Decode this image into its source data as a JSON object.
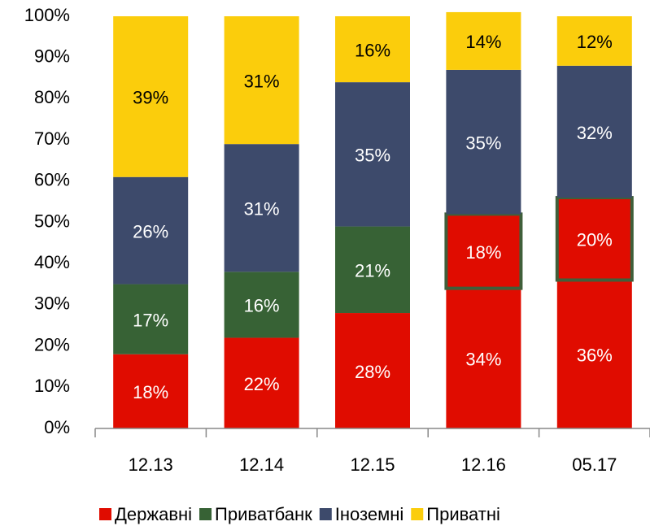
{
  "chart_data": {
    "type": "stacked_bar",
    "categories": [
      "12.13",
      "12.14",
      "12.15",
      "12.16",
      "05.17"
    ],
    "series": [
      {
        "name": "Державні",
        "color": "#e00c00",
        "values": [
          18,
          22,
          28,
          34,
          36
        ],
        "value_labels": [
          "18%",
          "22%",
          "28%",
          "34%",
          "36%"
        ]
      },
      {
        "name": "Приватбанк",
        "color": "#376235",
        "values": [
          17,
          16,
          21,
          18,
          20
        ],
        "value_labels": [
          "17%",
          "16%",
          "21%",
          "18%",
          "20%"
        ],
        "colors": [
          "#376235",
          "#376235",
          "#376235",
          "#e00c00",
          "#e00c00"
        ],
        "edgecolors": [
          null,
          null,
          null,
          "#3f5f3a",
          "#3f5f3a"
        ]
      },
      {
        "name": "Іноземні",
        "color": "#3d4a6b",
        "values": [
          26,
          31,
          35,
          35,
          32
        ],
        "value_labels": [
          "26%",
          "31%",
          "35%",
          "35%",
          "32%"
        ]
      },
      {
        "name": "Приватні",
        "color": "#fbcd0c",
        "values": [
          39,
          31,
          16,
          14,
          12
        ],
        "value_labels": [
          "39%",
          "31%",
          "16%",
          "14%",
          "12%"
        ]
      }
    ],
    "ylim": [
      0,
      100
    ],
    "yticks": [
      {
        "value": 0,
        "label": "0%"
      },
      {
        "value": 10,
        "label": "10%"
      },
      {
        "value": 20,
        "label": "20%"
      },
      {
        "value": 30,
        "label": "30%"
      },
      {
        "value": 40,
        "label": "40%"
      },
      {
        "value": 50,
        "label": "50%"
      },
      {
        "value": 60,
        "label": "60%"
      },
      {
        "value": 70,
        "label": "70%"
      },
      {
        "value": 80,
        "label": "80%"
      },
      {
        "value": 90,
        "label": "90%"
      },
      {
        "value": 100,
        "label": "100%"
      }
    ],
    "legend": "bottom"
  }
}
